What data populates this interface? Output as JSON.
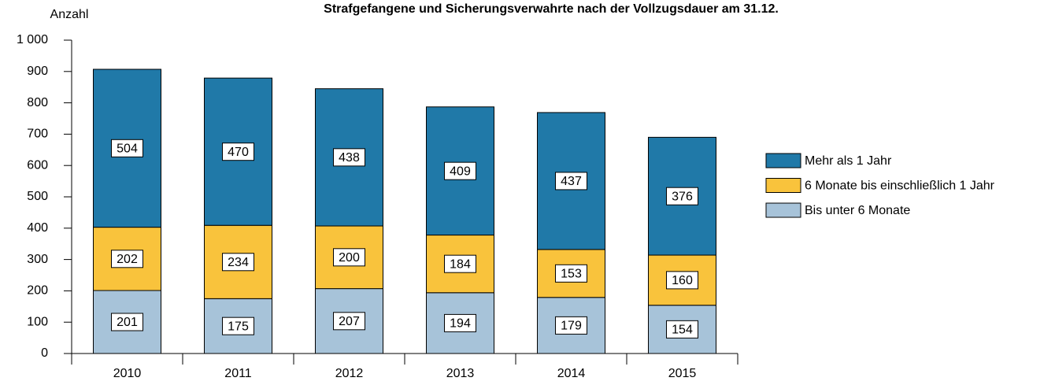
{
  "chart_data": {
    "type": "stacked-bar",
    "title": "Strafgefangene und Sicherungsverwahrte nach der Vollzugsdauer am 31.12.",
    "ylabel": "Anzahl",
    "categories": [
      "2010",
      "2011",
      "2012",
      "2013",
      "2014",
      "2015"
    ],
    "series": [
      {
        "name": "Bis unter 6 Monate",
        "color": "#a7c3d9",
        "values": [
          201,
          175,
          207,
          194,
          179,
          154
        ]
      },
      {
        "name": "6 Monate bis einschließlich 1 Jahr",
        "color": "#f9c33c",
        "values": [
          202,
          234,
          200,
          184,
          153,
          160
        ]
      },
      {
        "name": "Mehr als 1 Jahr",
        "color": "#2079a8",
        "values": [
          504,
          470,
          438,
          409,
          437,
          376
        ]
      }
    ],
    "ylim": [
      0,
      1000
    ],
    "yticks": [
      0,
      100,
      200,
      300,
      400,
      500,
      600,
      700,
      800,
      900,
      {
        "value": 1000,
        "label": "1 000"
      }
    ],
    "legend": "right"
  }
}
